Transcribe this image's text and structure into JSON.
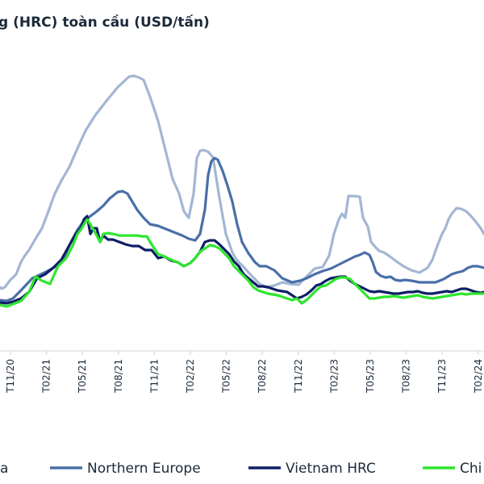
{
  "chart_data": {
    "type": "line",
    "title": "g (HRC) toàn cầu (USD/tấn)",
    "x_ticks": [
      "T11/20",
      "T02/21",
      "T05/21",
      "T08/21",
      "T11/21",
      "T02/22",
      "T05/22",
      "T08/22",
      "T11/22",
      "T02/23",
      "T05/23",
      "T08/23",
      "T11/23",
      "T02/24"
    ],
    "grid": false,
    "legend_position": "bottom",
    "series": [
      {
        "name": "a",
        "color": "#a3b6d3",
        "x": [
          0,
          2,
          6,
          12,
          15,
          20,
          26,
          30,
          36,
          44,
          52,
          60,
          68,
          76,
          86,
          96,
          106,
          118,
          132,
          146,
          160,
          166,
          172,
          178,
          186,
          196,
          206,
          214,
          222,
          228,
          234,
          240,
          244,
          248,
          252,
          258,
          264,
          272,
          280,
          288,
          292,
          296,
          300,
          304,
          310,
          316,
          322,
          330,
          340,
          350,
          360,
          370,
          380,
          390,
          400,
          408,
          414,
          420,
          424,
          428,
          432,
          436,
          440,
          446,
          450,
          456,
          460,
          466,
          470,
          476,
          482,
          490,
          500,
          510,
          520,
          530,
          536,
          542,
          548,
          552,
          556,
          560,
          566,
          572,
          578,
          584,
          590,
          596,
          600
        ],
        "y": [
          356,
          358,
          356,
          348,
          345,
          340,
          325,
          318,
          310,
          296,
          283,
          262,
          240,
          224,
          207,
          184,
          162,
          143,
          125,
          108,
          95,
          94,
          96,
          99,
          120,
          150,
          190,
          222,
          240,
          262,
          270,
          240,
          196,
          187,
          186,
          188,
          195,
          245,
          290,
          313,
          320,
          325,
          329,
          333,
          340,
          346,
          352,
          356,
          354,
          350,
          352,
          353,
          343,
          333,
          331,
          317,
          290,
          272,
          265,
          270,
          243,
          243,
          243,
          244,
          270,
          281,
          300,
          307,
          311,
          313,
          317,
          323,
          330,
          335,
          338,
          332,
          322,
          305,
          290,
          283,
          272,
          265,
          258,
          259,
          262,
          268,
          275,
          283,
          290
        ]
      },
      {
        "name": "Northern Europe",
        "color": "#4a6fa8",
        "x": [
          0,
          8,
          16,
          26,
          40,
          55,
          70,
          80,
          88,
          96,
          104,
          112,
          120,
          128,
          136,
          146,
          152,
          158,
          164,
          170,
          178,
          186,
          196,
          206,
          216,
          226,
          234,
          242,
          248,
          254,
          258,
          262,
          266,
          270,
          276,
          282,
          288,
          294,
          300,
          308,
          316,
          322,
          330,
          340,
          350,
          362,
          372,
          380,
          390,
          400,
          410,
          420,
          430,
          440,
          446,
          452,
          458,
          462,
          466,
          472,
          478,
          484,
          490,
          496,
          502,
          510,
          520,
          530,
          540,
          550,
          560,
          566,
          574,
          580,
          586,
          592,
          600
        ],
        "y": [
          372,
          373,
          370,
          360,
          345,
          338,
          330,
          318,
          300,
          285,
          274,
          268,
          262,
          255,
          246,
          238,
          237,
          240,
          250,
          260,
          270,
          278,
          280,
          284,
          288,
          292,
          296,
          298,
          290,
          260,
          217,
          200,
          196,
          198,
          212,
          230,
          250,
          278,
          300,
          314,
          325,
          330,
          330,
          335,
          345,
          350,
          348,
          345,
          340,
          336,
          333,
          328,
          323,
          318,
          316,
          313,
          316,
          325,
          337,
          342,
          344,
          343,
          347,
          348,
          347,
          348,
          350,
          350,
          350,
          346,
          340,
          338,
          336,
          332,
          330,
          330,
          332
        ]
      },
      {
        "name": "Vietnam HRC",
        "color": "#0d1f66",
        "x": [
          0,
          8,
          16,
          26,
          36,
          46,
          56,
          66,
          76,
          86,
          94,
          100,
          104,
          108,
          112,
          116,
          120,
          124,
          128,
          134,
          140,
          148,
          156,
          164,
          172,
          180,
          188,
          196,
          204,
          212,
          220,
          228,
          236,
          242,
          248,
          254,
          260,
          266,
          272,
          278,
          284,
          290,
          296,
          302,
          308,
          314,
          320,
          326,
          332,
          338,
          344,
          350,
          356,
          362,
          368,
          374,
          380,
          386,
          392,
          398,
          404,
          410,
          416,
          422,
          428,
          434,
          440,
          446,
          452,
          458,
          464,
          470,
          476,
          482,
          488,
          494,
          500,
          506,
          512,
          518,
          524,
          530,
          536,
          542,
          548,
          554,
          560,
          566,
          572,
          578,
          584,
          590,
          596,
          600
        ],
        "y": [
          375,
          376,
          374,
          370,
          362,
          345,
          340,
          332,
          322,
          304,
          290,
          283,
          272,
          268,
          290,
          283,
          283,
          300,
          292,
          297,
          297,
          300,
          303,
          305,
          305,
          310,
          310,
          320,
          318,
          323,
          325,
          330,
          326,
          320,
          312,
          300,
          298,
          298,
          303,
          309,
          315,
          324,
          330,
          340,
          345,
          350,
          355,
          355,
          356,
          358,
          360,
          361,
          362,
          366,
          370,
          368,
          365,
          360,
          354,
          352,
          348,
          345,
          344,
          343,
          343,
          348,
          352,
          355,
          358,
          361,
          362,
          361,
          362,
          363,
          364,
          364,
          363,
          362,
          362,
          361,
          363,
          364,
          364,
          363,
          362,
          361,
          362,
          360,
          358,
          358,
          360,
          362,
          363,
          362
        ]
      },
      {
        "name": "Chi",
        "color": "#2ee52e",
        "x": [
          0,
          8,
          16,
          26,
          36,
          44,
          52,
          62,
          72,
          82,
          90,
          96,
          100,
          104,
          108,
          112,
          116,
          120,
          124,
          128,
          134,
          140,
          148,
          156,
          164,
          170,
          176,
          182,
          188,
          196,
          204,
          212,
          220,
          228,
          236,
          242,
          248,
          254,
          260,
          266,
          272,
          278,
          284,
          290,
          296,
          302,
          308,
          314,
          320,
          326,
          332,
          338,
          344,
          350,
          356,
          362,
          368,
          374,
          380,
          386,
          392,
          398,
          404,
          410,
          416,
          422,
          428,
          434,
          440,
          446,
          452,
          458,
          464,
          470,
          476,
          482,
          488,
          494,
          500,
          506,
          512,
          518,
          524,
          530,
          536,
          542,
          548,
          554,
          560,
          566,
          572,
          578,
          584,
          590,
          596,
          600
        ],
        "y": [
          378,
          380,
          377,
          373,
          362,
          343,
          348,
          352,
          330,
          320,
          305,
          290,
          285,
          278,
          272,
          278,
          285,
          292,
          300,
          290,
          289,
          290,
          292,
          292,
          292,
          292,
          293,
          293,
          303,
          315,
          318,
          322,
          325,
          330,
          326,
          320,
          312,
          308,
          304,
          305,
          308,
          314,
          320,
          330,
          336,
          342,
          348,
          356,
          360,
          362,
          364,
          365,
          366,
          368,
          370,
          372,
          370,
          376,
          372,
          366,
          360,
          355,
          354,
          350,
          346,
          344,
          344,
          346,
          352,
          358,
          364,
          370,
          370,
          369,
          368,
          368,
          367,
          368,
          369,
          368,
          367,
          366,
          368,
          369,
          370,
          369,
          368,
          367,
          366,
          365,
          364,
          365,
          364,
          364,
          364,
          364
        ]
      }
    ]
  }
}
